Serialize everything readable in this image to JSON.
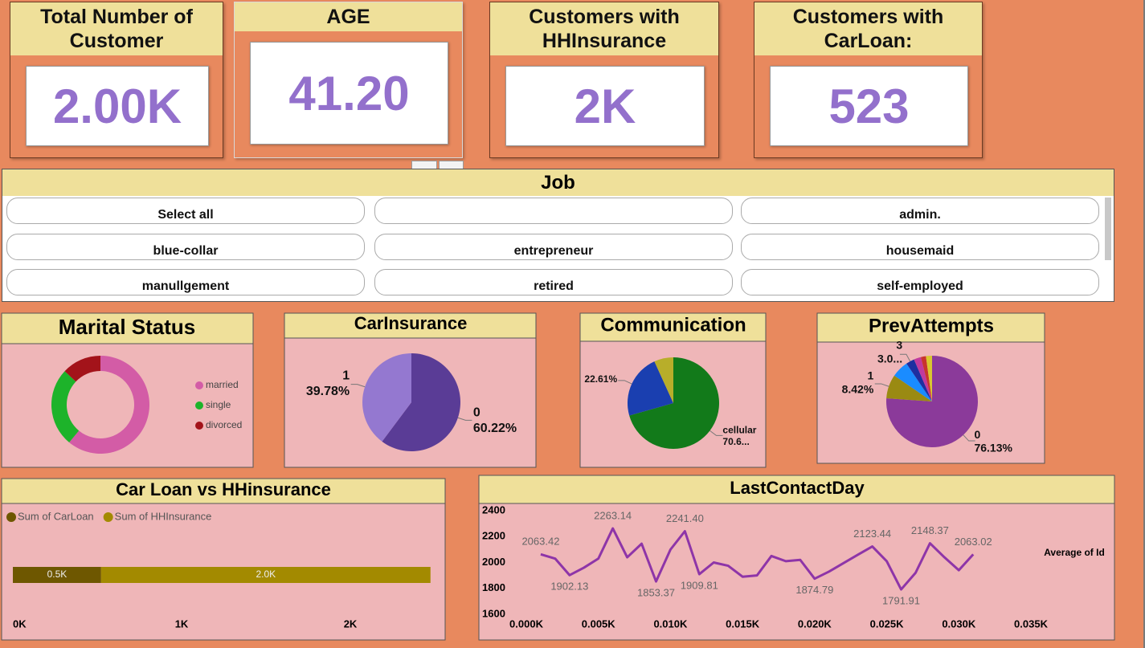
{
  "cards": [
    {
      "title": "Total Number of Customer",
      "value": "2.00K"
    },
    {
      "title": "AGE",
      "value": "41.20"
    },
    {
      "title": "Customers with HHInsurance",
      "value": "2K"
    },
    {
      "title": "Customers with CarLoan:",
      "value": "523"
    }
  ],
  "slicer": {
    "title": "Job",
    "items": [
      "Select all",
      null,
      "admin.",
      "blue-collar",
      "entrepreneur",
      "housemaid",
      "manullgement",
      "retired",
      "self-employed"
    ]
  },
  "chart_data": [
    {
      "type": "donut",
      "title": "Marital Status",
      "categories": [
        "married",
        "single",
        "divorced"
      ],
      "values": [
        61,
        26,
        13
      ],
      "colors": [
        "#d35ca6",
        "#1db32a",
        "#a3131a"
      ],
      "legend": "right"
    },
    {
      "type": "pie",
      "title": "CarInsurance",
      "categories": [
        "0",
        "1"
      ],
      "values": [
        60.22,
        39.78
      ],
      "value_labels": [
        "60.22%",
        "39.78%"
      ],
      "colors": [
        "#5a3c96",
        "#9478d0"
      ]
    },
    {
      "type": "pie",
      "title": "Communication",
      "categories": [
        "cellular",
        null,
        null
      ],
      "values": [
        70.6,
        22.61,
        6.79
      ],
      "value_labels": [
        "70.6...",
        "22.61%",
        null
      ],
      "colors": [
        "#127a1a",
        "#1a3fb0",
        "#b8ae2a"
      ]
    },
    {
      "type": "pie",
      "title": "PrevAttempts",
      "categories": [
        "0",
        "1",
        null,
        "3",
        null,
        null,
        null
      ],
      "values": [
        76.13,
        8.42,
        6.0,
        3.0,
        2.5,
        1.8,
        2.15
      ],
      "value_labels": [
        "76.13%",
        "8.42%",
        null,
        "3.0...",
        null,
        null,
        null
      ],
      "colors": [
        "#8b3a9a",
        "#9a8a12",
        "#1a8cff",
        "#1e2fa0",
        "#c03a9e",
        "#c8352e",
        "#d8c830"
      ]
    },
    {
      "type": "bar",
      "orientation": "horizontal",
      "stacked": true,
      "title": "Car Loan vs HHinsurance",
      "categories": [
        null
      ],
      "series": [
        {
          "name": "Sum of CarLoan",
          "color": "#6e5700",
          "values": [
            523
          ],
          "value_labels": [
            "0.5K"
          ]
        },
        {
          "name": "Sum of HHInsurance",
          "color": "#a38a00",
          "values": [
            1952
          ],
          "value_labels": [
            "2.0K"
          ]
        }
      ],
      "xlim": [
        0,
        2500
      ],
      "xticks": [
        {
          "value": 0,
          "label": "0K"
        },
        {
          "value": 1000,
          "label": "1K"
        },
        {
          "value": 2000,
          "label": "2K"
        }
      ],
      "legend": "top-left"
    },
    {
      "type": "line",
      "title": "LastContactDay",
      "x": [
        1,
        2,
        3,
        4,
        5,
        6,
        7,
        8,
        9,
        10,
        11,
        12,
        13,
        14,
        15,
        16,
        17,
        18,
        19,
        20,
        21,
        22,
        23,
        24,
        25,
        26,
        27,
        28,
        29,
        30,
        31
      ],
      "series": [
        {
          "name": "Average of Id",
          "color": "#8e35a8",
          "values": [
            2063.42,
            2030,
            1902.13,
            1960,
            2030,
            2263.14,
            2040,
            2145,
            1853.37,
            2100,
            2241.4,
            1909.81,
            2000,
            1975,
            1890,
            1900,
            2050,
            2010,
            2020,
            1874.79,
            1930,
            1995,
            2060,
            2123.44,
            2010,
            1791.91,
            1920,
            2148.37,
            2040,
            1940,
            2063.02
          ],
          "value_labels": [
            "2063.42",
            null,
            "1902.13",
            null,
            null,
            "2263.14",
            null,
            null,
            "1853.37",
            null,
            "2241.40",
            "1909.81",
            null,
            null,
            null,
            null,
            null,
            null,
            null,
            "1874.79",
            null,
            null,
            null,
            "2123.44",
            null,
            "1791.91",
            null,
            "2148.37",
            null,
            null,
            "2063.02"
          ]
        }
      ],
      "xlim": [
        0,
        35
      ],
      "xticks": [
        {
          "value": 0,
          "label": "0.000K"
        },
        {
          "value": 5,
          "label": "0.005K"
        },
        {
          "value": 10,
          "label": "0.010K"
        },
        {
          "value": 15,
          "label": "0.015K"
        },
        {
          "value": 20,
          "label": "0.020K"
        },
        {
          "value": 25,
          "label": "0.025K"
        },
        {
          "value": 30,
          "label": "0.030K"
        },
        {
          "value": 35,
          "label": "0.035K"
        }
      ],
      "ylim": [
        1600,
        2400
      ],
      "yticks": [
        1600,
        1800,
        2000,
        2200,
        2400
      ],
      "legend": "right"
    }
  ]
}
